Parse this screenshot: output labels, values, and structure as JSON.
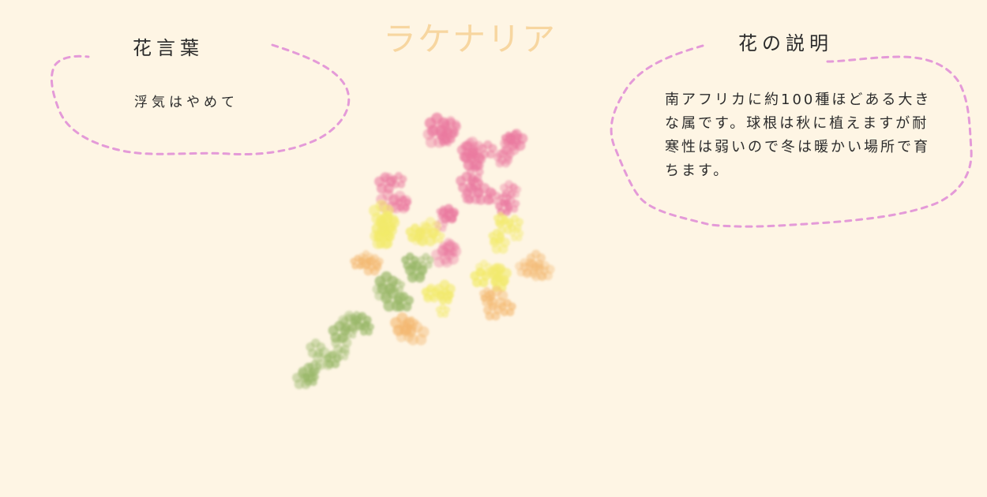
{
  "title": "ラケナリア",
  "left_panel": {
    "heading": "花言葉",
    "text": "浮気はやめて"
  },
  "right_panel": {
    "heading": "花の説明",
    "text": "南アフリカに約100種ほどある大きな属です。球根は秋に植えますが耐寒性は弱いので冬は暖かい場所で育ちます。"
  },
  "colors": {
    "background": "#fef5e4",
    "title": "#f7d6a0",
    "dashed_border": "#e49ad8",
    "flower_pink": "#ea7aa0",
    "flower_yellow": "#f2ea6a",
    "flower_orange": "#f3b870",
    "flower_green": "#98b768"
  },
  "illustration": "lachenalia-flower"
}
